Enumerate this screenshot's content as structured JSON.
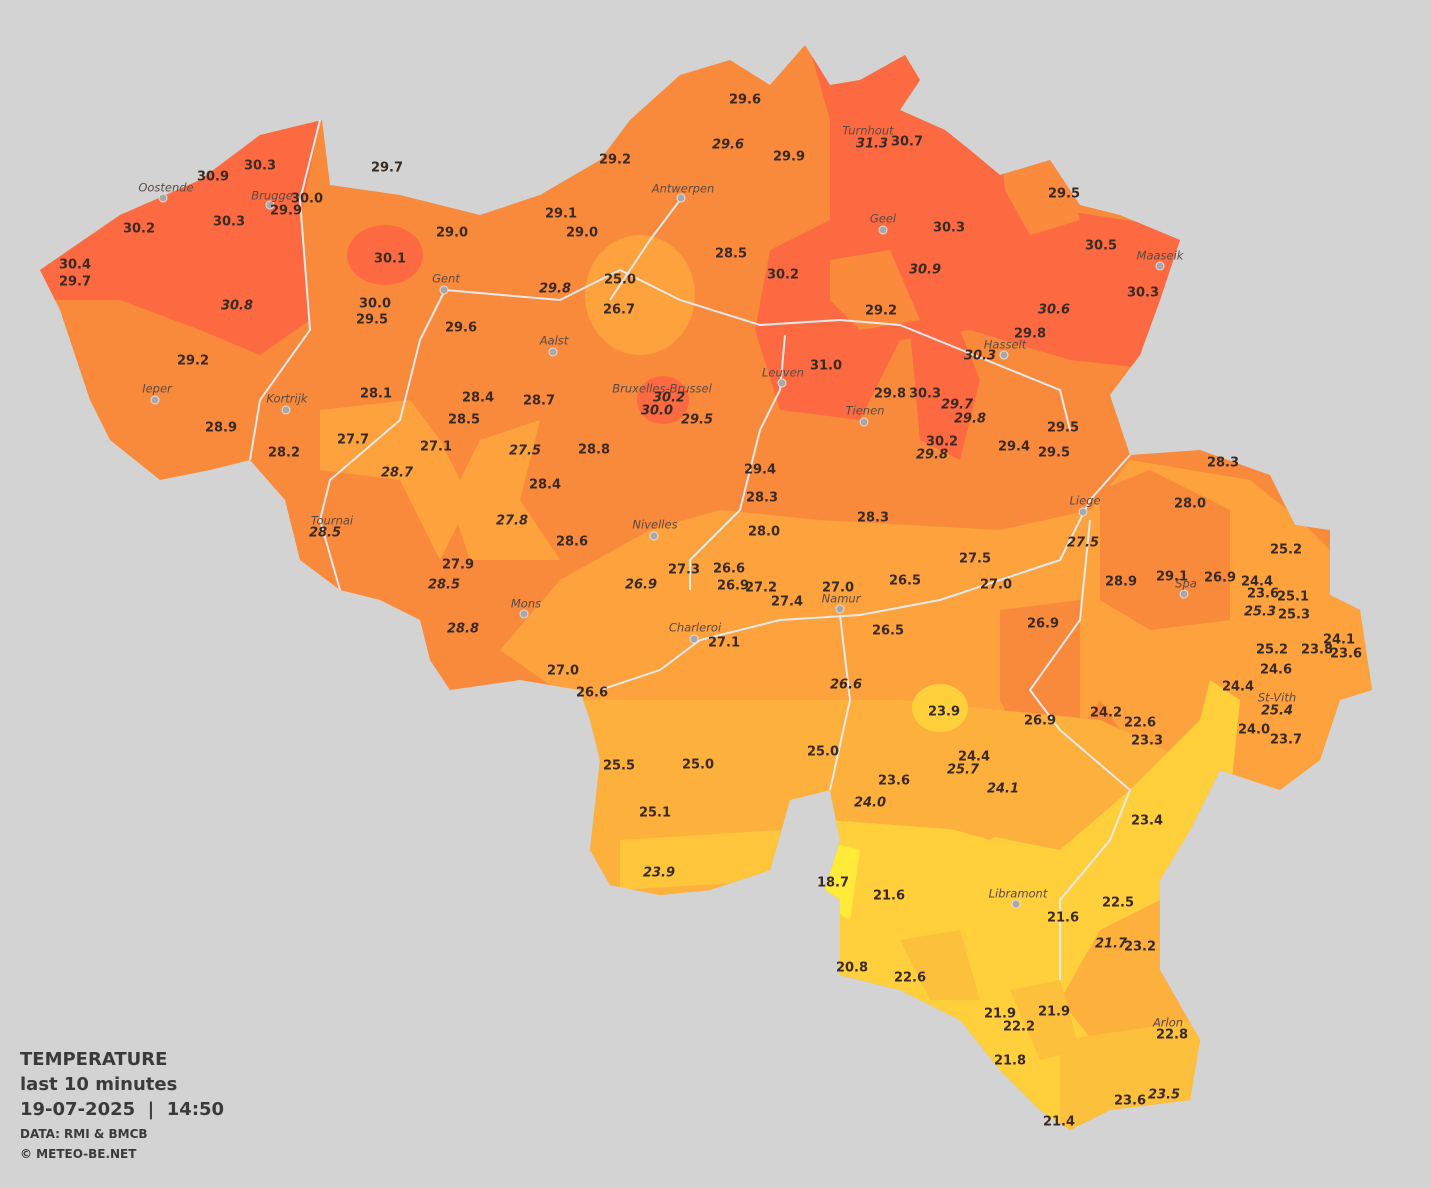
{
  "legend": {
    "title": "TEMPERATURE",
    "period": "last 10 minutes",
    "timestamp": "19-07-2025  |  14:50",
    "source": "DATA: RMI & BMCB",
    "credit": "© METEO-BE.NET"
  },
  "cities": [
    "Oostende",
    "Brugge",
    "Antwerpen",
    "Turnhout",
    "Geel",
    "Maaseik",
    "Gent",
    "Aalst",
    "Hasselt",
    "Leuven",
    "Ieper",
    "Kortrijk",
    "Bruxelles-Brussel",
    "Tienen",
    "Liege",
    "Tournai",
    "Nivelles",
    "Spa",
    "Mons",
    "Namur",
    "Charleroi",
    "St-Vith",
    "Libramont",
    "Arlon"
  ],
  "stations": [
    "29.6",
    "29.6",
    "29.9",
    "31.3",
    "30.7",
    "29.2",
    "29.7",
    "30.3",
    "30.9",
    "30.0",
    "29.9",
    "29.5",
    "29.1",
    "29.0",
    "29.0",
    "30.3",
    "30.2",
    "30.3",
    "30.5",
    "28.5",
    "30.1",
    "25.0",
    "30.4",
    "29.7",
    "30.2",
    "30.9",
    "30.3",
    "29.8",
    "30.8",
    "30.0",
    "29.5",
    "26.7",
    "29.2",
    "30.6",
    "29.6",
    "29.8",
    "30.3",
    "31.0",
    "29.2",
    "28.1",
    "28.4",
    "28.7",
    "30.2",
    "30.0",
    "29.5",
    "29.8",
    "30.3",
    "29.7",
    "29.8",
    "28.5",
    "28.9",
    "29.5",
    "27.7",
    "27.1",
    "27.5",
    "28.8",
    "30.2",
    "29.8",
    "29.4",
    "29.5",
    "28.2",
    "28.7",
    "29.4",
    "28.3",
    "28.4",
    "28.3",
    "28.0",
    "27.8",
    "28.3",
    "28.5",
    "28.0",
    "27.5",
    "28.6",
    "25.2",
    "27.9",
    "27.3",
    "26.6",
    "27.5",
    "26.9",
    "26.9",
    "27.2",
    "27.0",
    "26.5",
    "27.0",
    "28.9",
    "29.1",
    "26.9",
    "24.4",
    "23.6",
    "25.1",
    "28.5",
    "27.4",
    "25.3",
    "25.3",
    "28.8",
    "26.5",
    "26.9",
    "24.1",
    "27.1",
    "25.2",
    "23.8",
    "23.6",
    "27.0",
    "24.6",
    "26.6",
    "24.4",
    "26.6",
    "23.9",
    "24.2",
    "25.4",
    "26.9",
    "22.6",
    "24.0",
    "23.3",
    "23.7",
    "25.0",
    "24.4",
    "25.7",
    "25.5",
    "25.0",
    "23.6",
    "24.1",
    "24.0",
    "25.1",
    "23.4",
    "23.9",
    "18.7",
    "21.6",
    "22.5",
    "21.6",
    "21.7",
    "23.2",
    "20.8",
    "22.6",
    "21.9",
    "21.9",
    "22.2",
    "22.8",
    "21.8",
    "23.6",
    "23.5",
    "21.4"
  ]
}
